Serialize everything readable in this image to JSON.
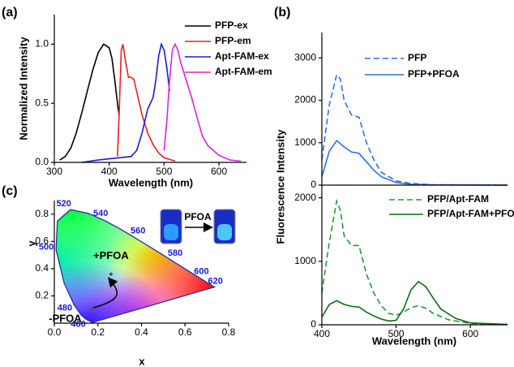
{
  "chart_data": [
    {
      "type": "line",
      "panel_label": "(a)",
      "xlabel": "Wavelength (nm)",
      "ylabel": "Normalized Intensity",
      "xlim": [
        300,
        650
      ],
      "xticks": [
        300,
        400,
        500,
        600
      ],
      "ylim": [
        0,
        1.25
      ],
      "yticks": [
        {
          "value": 0,
          "label": "0.0"
        },
        0.5,
        {
          "value": 1,
          "label": "1.0"
        }
      ],
      "series": [
        {
          "name": "PFP-ex",
          "color": "#000000",
          "style": "solid",
          "x": [
            310,
            320,
            330,
            340,
            350,
            360,
            370,
            380,
            390,
            400,
            405,
            410,
            415,
            418
          ],
          "values": [
            0.02,
            0.05,
            0.12,
            0.25,
            0.42,
            0.6,
            0.78,
            0.93,
            1.0,
            0.97,
            0.88,
            0.7,
            0.5,
            0.4
          ]
        },
        {
          "name": "PFP-em",
          "color": "#e8201a",
          "style": "solid",
          "x": [
            415,
            418,
            422,
            425,
            430,
            435,
            440,
            445,
            450,
            460,
            470,
            480,
            490,
            500,
            520
          ],
          "values": [
            0.05,
            0.4,
            0.95,
            1.0,
            0.85,
            0.72,
            0.72,
            0.7,
            0.6,
            0.4,
            0.25,
            0.15,
            0.08,
            0.04,
            0.01
          ]
        },
        {
          "name": "Apt-FAM-ex",
          "color": "#1a1adb",
          "style": "solid",
          "x": [
            350,
            380,
            400,
            420,
            440,
            450,
            460,
            470,
            475,
            480,
            485,
            490,
            495,
            500,
            505,
            510
          ],
          "values": [
            0.0,
            0.02,
            0.03,
            0.04,
            0.05,
            0.1,
            0.25,
            0.45,
            0.5,
            0.55,
            0.7,
            0.9,
            1.0,
            0.95,
            0.8,
            0.6
          ]
        },
        {
          "name": "Apt-FAM-em",
          "color": "#e020e0",
          "style": "solid",
          "x": [
            500,
            505,
            510,
            515,
            520,
            525,
            530,
            540,
            550,
            560,
            570,
            580,
            600,
            620,
            640
          ],
          "values": [
            0.1,
            0.35,
            0.7,
            0.95,
            1.0,
            0.95,
            0.85,
            0.7,
            0.55,
            0.38,
            0.22,
            0.14,
            0.06,
            0.02,
            0.01
          ]
        }
      ]
    },
    {
      "type": "line",
      "panel_label": "(b)",
      "ylabel": "Fluorescence Intensity",
      "xlim": [
        400,
        650
      ],
      "ylim": [
        0,
        3600
      ],
      "yticks": [
        0,
        1000,
        2000,
        3000
      ],
      "series": [
        {
          "name": "PFP",
          "color": "#2f6fe0",
          "style": "dashed",
          "x": [
            400,
            410,
            420,
            425,
            430,
            440,
            450,
            460,
            470,
            480,
            500,
            520,
            550,
            600,
            650
          ],
          "values": [
            600,
            1900,
            2600,
            2500,
            2000,
            1650,
            1600,
            1000,
            600,
            300,
            100,
            40,
            10,
            5,
            0
          ]
        },
        {
          "name": "PFP+PFOA",
          "color": "#2f6fe0",
          "style": "solid",
          "x": [
            400,
            410,
            420,
            430,
            440,
            450,
            460,
            470,
            480,
            500,
            520,
            550,
            650
          ],
          "values": [
            200,
            800,
            1050,
            900,
            780,
            750,
            550,
            350,
            200,
            60,
            20,
            5,
            0
          ]
        }
      ]
    },
    {
      "type": "line",
      "xlabel": "Wavelength (nm)",
      "xlim": [
        400,
        650
      ],
      "xticks": [
        400,
        500,
        600
      ],
      "ylim": [
        0,
        2200
      ],
      "yticks": [
        0,
        1000,
        2000
      ],
      "series": [
        {
          "name": "PFP/Apt-FAM",
          "color": "#1f9a3a",
          "style": "dashed",
          "x": [
            400,
            410,
            420,
            425,
            430,
            440,
            450,
            460,
            470,
            480,
            490,
            500,
            510,
            520,
            530,
            540,
            550,
            570,
            600,
            650
          ],
          "values": [
            500,
            1300,
            1950,
            1800,
            1400,
            1250,
            1250,
            800,
            500,
            300,
            180,
            150,
            200,
            270,
            300,
            260,
            180,
            80,
            20,
            0
          ]
        },
        {
          "name": "PFP/Apt-FAM+PFOA",
          "color": "#0d6b16",
          "style": "solid",
          "x": [
            400,
            410,
            420,
            430,
            440,
            450,
            460,
            470,
            480,
            490,
            500,
            510,
            520,
            530,
            540,
            550,
            560,
            580,
            600,
            650
          ],
          "values": [
            120,
            320,
            380,
            320,
            290,
            280,
            200,
            140,
            90,
            60,
            70,
            250,
            550,
            680,
            600,
            420,
            250,
            100,
            30,
            5
          ]
        }
      ]
    },
    {
      "type": "cie",
      "panel_label": "(c)",
      "xlabel": "x",
      "ylabel": "y",
      "xlim": [
        0,
        0.8
      ],
      "xticks": [
        {
          "value": 0,
          "label": "0.0"
        },
        0.2,
        0.4,
        0.6,
        0.8
      ],
      "ylim": [
        0,
        0.9
      ],
      "yticks": [
        0.2,
        0.4,
        0.6,
        0.8
      ],
      "locus": {
        "x": [
          0.174,
          0.144,
          0.124,
          0.091,
          0.045,
          0.008,
          0.014,
          0.074,
          0.155,
          0.23,
          0.302,
          0.373,
          0.444,
          0.512,
          0.575,
          0.627,
          0.691,
          0.735
        ],
        "y": [
          0.005,
          0.03,
          0.058,
          0.133,
          0.295,
          0.538,
          0.75,
          0.834,
          0.806,
          0.754,
          0.692,
          0.624,
          0.555,
          0.487,
          0.424,
          0.372,
          0.308,
          0.265
        ]
      },
      "wavelength_labels": {
        "values": [
          460,
          480,
          500,
          520,
          540,
          560,
          580,
          600,
          620
        ],
        "x": [
          0.144,
          0.091,
          0.008,
          0.074,
          0.23,
          0.373,
          0.512,
          0.627,
          0.691
        ],
        "y": [
          0.03,
          0.133,
          0.538,
          0.834,
          0.754,
          0.624,
          0.487,
          0.372,
          0.308
        ]
      },
      "points": {
        "names": [
          "-PFOA",
          "+PFOA"
        ],
        "x": [
          0.17,
          0.26
        ],
        "y": [
          0.1,
          0.36
        ]
      },
      "vial_label": "PFOA"
    }
  ]
}
